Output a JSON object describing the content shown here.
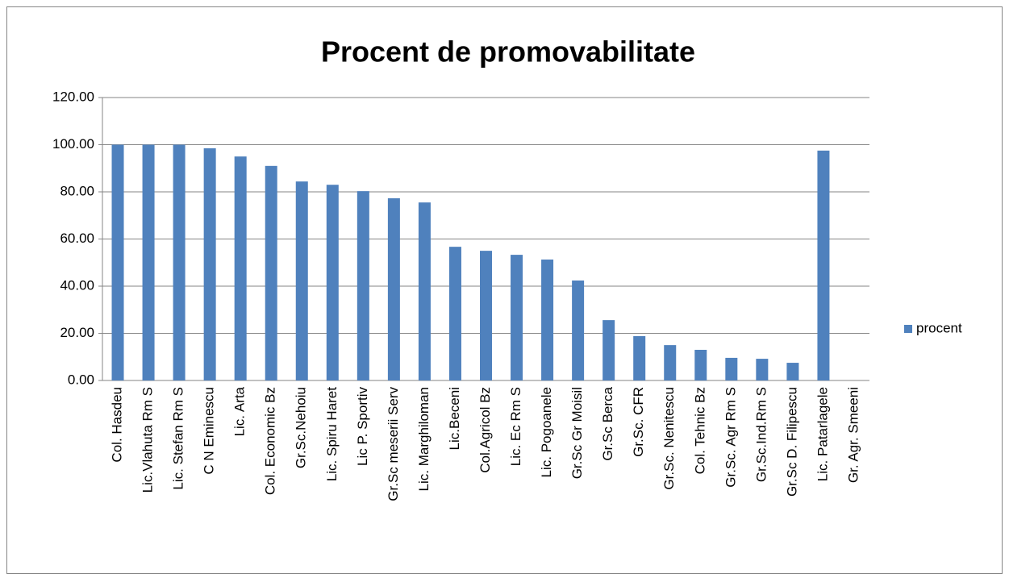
{
  "chart_data": {
    "type": "bar",
    "title": "Procent de promovabilitate",
    "categories": [
      "Col. Hasdeu",
      "Lic.Vlahuta Rm S",
      "Lic. Stefan Rm S",
      "C N Eminescu",
      "Lic. Arta",
      "Col. Economic Bz",
      "Gr.Sc.Nehoiu",
      "Lic. Spiru Haret",
      "Lic P. Sportiv",
      "Gr.Sc meserii Serv",
      "Lic. Marghiloman",
      "Lic.Beceni",
      "Col.Agricol Bz",
      "Lic. Ec Rm S",
      "Lic. Pogoanele",
      "Gr.Sc Gr Moisil",
      "Gr.Sc Berca",
      "Gr.Sc. CFR",
      "Gr.Sc. Nenitescu",
      "Col. Tehnic Bz",
      "Gr.Sc. Agr Rm S",
      "Gr.Sc.Ind.Rm S",
      "Gr.Sc D. Filipescu",
      "Lic. Patarlagele",
      "Gr. Agr. Smeeni"
    ],
    "series": [
      {
        "name": "procent",
        "color": "#4f81bd",
        "values": [
          100,
          100,
          100,
          98.5,
          95,
          91,
          84.4,
          83,
          80.3,
          77.3,
          75.5,
          56.7,
          55,
          53.3,
          51.3,
          42.4,
          25.6,
          18.8,
          15,
          13,
          9.6,
          9.2,
          7.5,
          97.5,
          0
        ]
      }
    ],
    "ylim": [
      0,
      120
    ],
    "yticks": [
      {
        "value": 0,
        "label": "0.00"
      },
      {
        "value": 20,
        "label": "20.00"
      },
      {
        "value": 40,
        "label": "40.00"
      },
      {
        "value": 60,
        "label": "60.00"
      },
      {
        "value": 80,
        "label": "80.00"
      },
      {
        "value": 100,
        "label": "100.00"
      },
      {
        "value": 120,
        "label": "120.00"
      }
    ],
    "grid": true,
    "legend": "right"
  }
}
